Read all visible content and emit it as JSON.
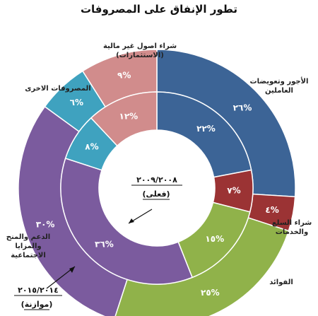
{
  "chart_data": {
    "type": "pie",
    "title": "تطور الإنفاق على المصروفات",
    "series": [
      {
        "name": "٢٠١٥/٢٠١٤ (موازنة)",
        "values": [
          26,
          4,
          25,
          30,
          6,
          9
        ],
        "value_labels": [
          "٢٦%",
          "٤%",
          "٢٥%",
          "٣٠%",
          "٦%",
          "٩%"
        ]
      },
      {
        "name": "٢٠٠٩/٢٠٠٨ (فعلي)",
        "values": [
          22,
          7,
          15,
          36,
          8,
          12
        ],
        "value_labels": [
          "٢٢%",
          "٧%",
          "١٥%",
          "٣٦%",
          "٨%",
          "١٢%"
        ]
      }
    ],
    "categories": [
      "الأجور وتعويضات العاملين",
      "شراء السلع والخدمات",
      "الفوائد",
      "الدعم والمنح والمزايا الاجتماعية",
      "المصروفات الاخرى",
      "شراء اصول غير مالية (الاستثمارات)"
    ],
    "colors": [
      "#3c6496",
      "#9b3334",
      "#90b24a",
      "#7b5b9e",
      "#3fa2bf",
      "#d18c8c"
    ],
    "outer_ring_label": {
      "year": "٢٠١٥/٢٠١٤",
      "note": "(موازنة)"
    },
    "inner_ring_label": {
      "year": "٢٠٠٩/٢٠٠٨",
      "note": "(فعلى)"
    }
  }
}
